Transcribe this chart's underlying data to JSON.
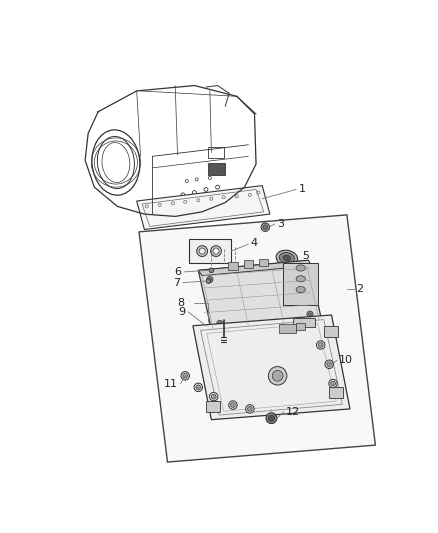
{
  "bg_color": "#ffffff",
  "line_color": "#333333",
  "dark_color": "#222222",
  "gray_color": "#888888",
  "light_gray": "#cccccc",
  "label_fontsize": 8,
  "labels": [
    [
      318,
      163,
      "1"
    ],
    [
      393,
      292,
      "2"
    ],
    [
      290,
      208,
      "3"
    ],
    [
      258,
      233,
      "4"
    ],
    [
      322,
      248,
      "5"
    ],
    [
      163,
      270,
      "6"
    ],
    [
      160,
      284,
      "7"
    ],
    [
      167,
      310,
      "8"
    ],
    [
      167,
      322,
      "9"
    ],
    [
      370,
      385,
      "10"
    ],
    [
      158,
      415,
      "11"
    ],
    [
      300,
      452,
      "12"
    ]
  ]
}
